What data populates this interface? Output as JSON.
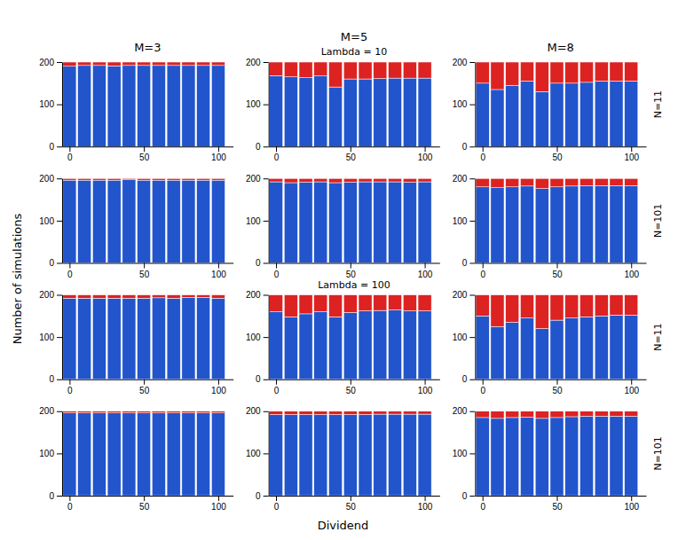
{
  "chart_data": [
    {
      "type": "bar",
      "stacked": true,
      "title": "M=3",
      "x": [
        0,
        10,
        20,
        30,
        40,
        50,
        60,
        70,
        80,
        90,
        100
      ],
      "xlim": [
        -5,
        110
      ],
      "xticks": [
        0,
        50,
        100
      ],
      "ylim": [
        0,
        200
      ],
      "yticks": [
        0,
        100,
        200
      ],
      "grid": false,
      "series": [
        {
          "color": "#2255CC",
          "values": [
            190,
            192,
            192,
            191,
            192,
            192,
            192,
            192,
            192,
            192,
            192
          ]
        },
        {
          "color": "#DD2222",
          "values": [
            10,
            8,
            8,
            9,
            8,
            8,
            8,
            8,
            8,
            8,
            8
          ]
        }
      ]
    },
    {
      "type": "bar",
      "stacked": true,
      "title": "M=5",
      "subtitle": "Lambda = 10",
      "x": [
        0,
        10,
        20,
        30,
        40,
        50,
        60,
        70,
        80,
        90,
        100
      ],
      "xlim": [
        -5,
        110
      ],
      "xticks": [
        0,
        50,
        100
      ],
      "ylim": [
        0,
        200
      ],
      "yticks": [
        0,
        100,
        200
      ],
      "grid": false,
      "series": [
        {
          "color": "#2255CC",
          "values": [
            168,
            165,
            163,
            167,
            141,
            160,
            160,
            161,
            162,
            162,
            162
          ]
        },
        {
          "color": "#DD2222",
          "values": [
            32,
            35,
            37,
            33,
            59,
            40,
            40,
            39,
            38,
            38,
            38
          ]
        }
      ]
    },
    {
      "type": "bar",
      "stacked": true,
      "title": "M=8",
      "annotations": [
        "N=11"
      ],
      "x": [
        0,
        10,
        20,
        30,
        40,
        50,
        60,
        70,
        80,
        90,
        100
      ],
      "xlim": [
        -5,
        110
      ],
      "xticks": [
        0,
        50,
        100
      ],
      "ylim": [
        0,
        200
      ],
      "yticks": [
        0,
        100,
        200
      ],
      "grid": false,
      "series": [
        {
          "color": "#2255CC",
          "values": [
            150,
            135,
            145,
            155,
            130,
            150,
            150,
            152,
            155,
            155,
            155
          ]
        },
        {
          "color": "#DD2222",
          "values": [
            50,
            65,
            55,
            45,
            70,
            50,
            50,
            48,
            45,
            45,
            45
          ]
        }
      ]
    },
    {
      "type": "bar",
      "stacked": true,
      "ylabel": "Number of simulations",
      "x": [
        0,
        10,
        20,
        30,
        40,
        50,
        60,
        70,
        80,
        90,
        100
      ],
      "xlim": [
        -5,
        110
      ],
      "xticks": [
        0,
        50,
        100
      ],
      "ylim": [
        0,
        200
      ],
      "yticks": [
        0,
        100,
        200
      ],
      "grid": false,
      "series": [
        {
          "color": "#2255CC",
          "values": [
            196,
            196,
            196,
            196,
            197,
            196,
            196,
            196,
            196,
            196,
            196
          ]
        },
        {
          "color": "#DD2222",
          "values": [
            4,
            4,
            4,
            4,
            3,
            4,
            4,
            4,
            4,
            4,
            4
          ]
        }
      ]
    },
    {
      "type": "bar",
      "stacked": true,
      "x": [
        0,
        10,
        20,
        30,
        40,
        50,
        60,
        70,
        80,
        90,
        100
      ],
      "xlim": [
        -5,
        110
      ],
      "xticks": [
        0,
        50,
        100
      ],
      "ylim": [
        0,
        200
      ],
      "yticks": [
        0,
        100,
        200
      ],
      "grid": false,
      "series": [
        {
          "color": "#2255CC",
          "values": [
            192,
            190,
            191,
            192,
            190,
            191,
            192,
            192,
            192,
            191,
            192
          ]
        },
        {
          "color": "#DD2222",
          "values": [
            8,
            10,
            9,
            8,
            10,
            9,
            8,
            8,
            8,
            9,
            8
          ]
        }
      ]
    },
    {
      "type": "bar",
      "stacked": true,
      "annotations": [
        "N=101"
      ],
      "x": [
        0,
        10,
        20,
        30,
        40,
        50,
        60,
        70,
        80,
        90,
        100
      ],
      "xlim": [
        -5,
        110
      ],
      "xticks": [
        0,
        50,
        100
      ],
      "ylim": [
        0,
        200
      ],
      "yticks": [
        0,
        100,
        200
      ],
      "grid": false,
      "series": [
        {
          "color": "#2255CC",
          "values": [
            180,
            178,
            180,
            182,
            176,
            180,
            182,
            183,
            183,
            183,
            183
          ]
        },
        {
          "color": "#DD2222",
          "values": [
            20,
            22,
            20,
            18,
            24,
            20,
            18,
            17,
            17,
            17,
            17
          ]
        }
      ]
    },
    {
      "type": "bar",
      "stacked": true,
      "x": [
        0,
        10,
        20,
        30,
        40,
        50,
        60,
        70,
        80,
        90,
        100
      ],
      "xlim": [
        -5,
        110
      ],
      "xticks": [
        0,
        50,
        100
      ],
      "ylim": [
        0,
        200
      ],
      "yticks": [
        0,
        100,
        200
      ],
      "grid": false,
      "series": [
        {
          "color": "#2255CC",
          "values": [
            192,
            192,
            192,
            192,
            192,
            192,
            193,
            192,
            194,
            194,
            192
          ]
        },
        {
          "color": "#DD2222",
          "values": [
            8,
            8,
            8,
            8,
            8,
            8,
            7,
            8,
            6,
            6,
            8
          ]
        }
      ]
    },
    {
      "type": "bar",
      "stacked": true,
      "subtitle": "Lambda = 100",
      "x": [
        0,
        10,
        20,
        30,
        40,
        50,
        60,
        70,
        80,
        90,
        100
      ],
      "xlim": [
        -5,
        110
      ],
      "xticks": [
        0,
        50,
        100
      ],
      "ylim": [
        0,
        200
      ],
      "yticks": [
        0,
        100,
        200
      ],
      "grid": false,
      "series": [
        {
          "color": "#2255CC",
          "values": [
            160,
            148,
            155,
            160,
            148,
            158,
            162,
            163,
            164,
            162,
            162
          ]
        },
        {
          "color": "#DD2222",
          "values": [
            40,
            52,
            45,
            40,
            52,
            42,
            38,
            37,
            36,
            38,
            38
          ]
        }
      ]
    },
    {
      "type": "bar",
      "stacked": true,
      "annotations": [
        "N=11"
      ],
      "x": [
        0,
        10,
        20,
        30,
        40,
        50,
        60,
        70,
        80,
        90,
        100
      ],
      "xlim": [
        -5,
        110
      ],
      "xticks": [
        0,
        50,
        100
      ],
      "ylim": [
        0,
        200
      ],
      "yticks": [
        0,
        100,
        200
      ],
      "grid": false,
      "series": [
        {
          "color": "#2255CC",
          "values": [
            150,
            125,
            135,
            145,
            120,
            140,
            145,
            148,
            150,
            152,
            152
          ]
        },
        {
          "color": "#DD2222",
          "values": [
            50,
            75,
            65,
            55,
            80,
            60,
            55,
            52,
            50,
            48,
            48
          ]
        }
      ]
    },
    {
      "type": "bar",
      "stacked": true,
      "x": [
        0,
        10,
        20,
        30,
        40,
        50,
        60,
        70,
        80,
        90,
        100
      ],
      "xlim": [
        -5,
        110
      ],
      "xticks": [
        0,
        50,
        100
      ],
      "ylim": [
        0,
        200
      ],
      "yticks": [
        0,
        100,
        200
      ],
      "grid": false,
      "series": [
        {
          "color": "#2255CC",
          "values": [
            196,
            196,
            196,
            196,
            196,
            196,
            196,
            196,
            196,
            196,
            196
          ]
        },
        {
          "color": "#DD2222",
          "values": [
            4,
            4,
            4,
            4,
            4,
            4,
            4,
            4,
            4,
            4,
            4
          ]
        }
      ]
    },
    {
      "type": "bar",
      "stacked": true,
      "xlabel": "Dividend",
      "x": [
        0,
        10,
        20,
        30,
        40,
        50,
        60,
        70,
        80,
        90,
        100
      ],
      "xlim": [
        -5,
        110
      ],
      "xticks": [
        0,
        50,
        100
      ],
      "ylim": [
        0,
        200
      ],
      "yticks": [
        0,
        100,
        200
      ],
      "grid": false,
      "series": [
        {
          "color": "#2255CC",
          "values": [
            192,
            192,
            192,
            192,
            192,
            192,
            192,
            193,
            193,
            193,
            193
          ]
        },
        {
          "color": "#DD2222",
          "values": [
            8,
            8,
            8,
            8,
            8,
            8,
            8,
            7,
            7,
            7,
            7
          ]
        }
      ]
    },
    {
      "type": "bar",
      "stacked": true,
      "annotations": [
        "N=101"
      ],
      "x": [
        0,
        10,
        20,
        30,
        40,
        50,
        60,
        70,
        80,
        90,
        100
      ],
      "xlim": [
        -5,
        110
      ],
      "xticks": [
        0,
        50,
        100
      ],
      "ylim": [
        0,
        200
      ],
      "yticks": [
        0,
        100,
        200
      ],
      "grid": false,
      "series": [
        {
          "color": "#2255CC",
          "values": [
            185,
            183,
            185,
            186,
            183,
            185,
            187,
            188,
            188,
            188,
            188
          ]
        },
        {
          "color": "#DD2222",
          "values": [
            15,
            17,
            15,
            14,
            17,
            15,
            13,
            12,
            12,
            12,
            12
          ]
        }
      ]
    }
  ]
}
